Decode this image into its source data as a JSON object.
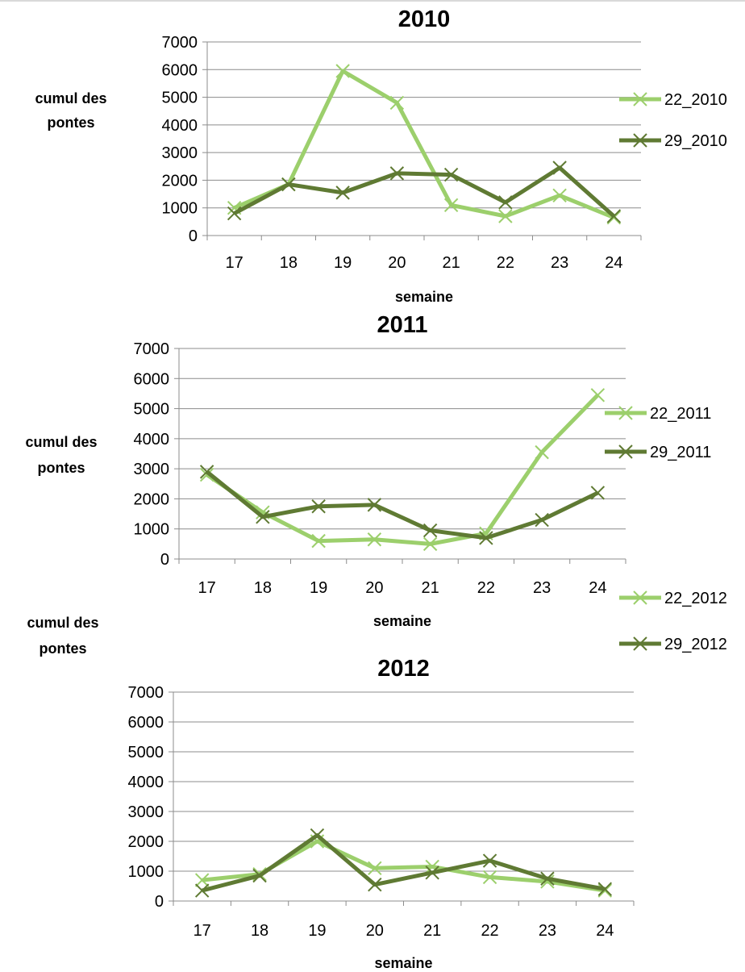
{
  "colors": {
    "series_light": "#9ccf6c",
    "series_dark": "#5f7a33",
    "gridline": "#8c8c8c",
    "axis": "#8c8c8c"
  },
  "marker": "x-mark",
  "chart_data": [
    {
      "type": "line",
      "title": "2010",
      "xlabel": "semaine",
      "ylabel_lines": [
        "cumul des",
        "pontes"
      ],
      "categories": [
        "17",
        "18",
        "19",
        "20",
        "21",
        "22",
        "23",
        "24"
      ],
      "ylim": [
        0,
        7000
      ],
      "yticks": [
        "0",
        "1000",
        "2000",
        "3000",
        "4000",
        "5000",
        "6000",
        "7000"
      ],
      "grid": true,
      "legend_position": "right",
      "series": [
        {
          "name": "22_2010",
          "color": "#9ccf6c",
          "values": [
            1000,
            1850,
            5950,
            4800,
            1100,
            700,
            1450,
            650
          ]
        },
        {
          "name": "29_2010",
          "color": "#5f7a33",
          "values": [
            800,
            1850,
            1550,
            2250,
            2200,
            1200,
            2450,
            700
          ]
        }
      ]
    },
    {
      "type": "line",
      "title": "2011",
      "xlabel": "semaine",
      "ylabel_lines": [
        "cumul des",
        "pontes"
      ],
      "categories": [
        "17",
        "18",
        "19",
        "20",
        "21",
        "22",
        "23",
        "24"
      ],
      "ylim": [
        0,
        7000
      ],
      "yticks": [
        "0",
        "1000",
        "2000",
        "3000",
        "4000",
        "5000",
        "6000",
        "7000"
      ],
      "grid": true,
      "legend_position": "right",
      "series": [
        {
          "name": "22_2011",
          "color": "#9ccf6c",
          "values": [
            2800,
            1550,
            600,
            650,
            500,
            850,
            3550,
            5450
          ]
        },
        {
          "name": "29_2011",
          "color": "#5f7a33",
          "values": [
            2900,
            1400,
            1750,
            1800,
            950,
            700,
            1300,
            2200
          ]
        }
      ]
    },
    {
      "type": "line",
      "title": "2012",
      "xlabel": "semaine",
      "ylabel_lines": [
        "cumul des",
        "pontes"
      ],
      "categories": [
        "17",
        "18",
        "19",
        "20",
        "21",
        "22",
        "23",
        "24"
      ],
      "ylim": [
        0,
        7000
      ],
      "yticks": [
        "0",
        "1000",
        "2000",
        "3000",
        "4000",
        "5000",
        "6000",
        "7000"
      ],
      "grid": true,
      "legend_position": "right",
      "series": [
        {
          "name": "22_2012",
          "color": "#9ccf6c",
          "values": [
            700,
            900,
            2000,
            1100,
            1150,
            800,
            650,
            350
          ]
        },
        {
          "name": "29_2012",
          "color": "#5f7a33",
          "values": [
            350,
            850,
            2200,
            550,
            950,
            1350,
            750,
            400
          ]
        }
      ]
    }
  ]
}
